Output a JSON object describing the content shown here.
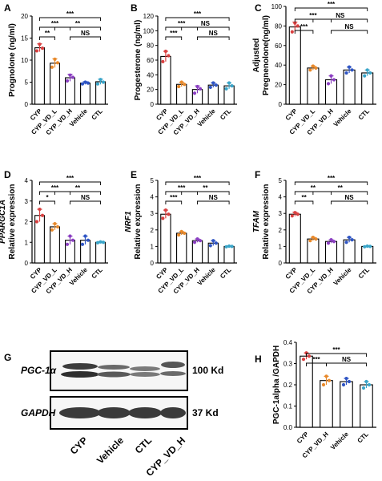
{
  "colors": {
    "CYP": "#d94040",
    "CYP_VD_L": "#e8892b",
    "CYP_VD_H": "#8b3fc2",
    "Vehicle": "#2f55c4",
    "CTL": "#3aa5c9"
  },
  "chart_data": [
    {
      "panel": "A",
      "type": "bar",
      "categories": [
        "CYP",
        "CYP_VD_L",
        "CYP_VD_H",
        "Vehicle",
        "CTL"
      ],
      "values": [
        12.8,
        9.3,
        6.0,
        4.8,
        5.1
      ],
      "errors": [
        0.9,
        1.0,
        0.8,
        0.3,
        0.6
      ],
      "points": [
        [
          12.1,
          13.6,
          12.7
        ],
        [
          8.4,
          10.2,
          9.4
        ],
        [
          5.3,
          6.6,
          6.1
        ],
        [
          4.6,
          5.0,
          4.8
        ],
        [
          4.6,
          5.6,
          5.0
        ]
      ],
      "ylabel": "Prognolone (ng/ml)",
      "ylim": [
        0,
        20
      ],
      "yticks": [
        0,
        5,
        10,
        15,
        20
      ],
      "sig": [
        {
          "from": 0,
          "to": 1,
          "level": 0,
          "label": "**"
        },
        {
          "from": 0,
          "to": 2,
          "level": 1,
          "label": "***"
        },
        {
          "from": 0,
          "to": 4,
          "level": 2,
          "label": "***"
        },
        {
          "from": 1,
          "to": 4,
          "level": 1,
          "label": "**"
        },
        {
          "from": 2,
          "to": 4,
          "level": 0,
          "label": "NS"
        }
      ]
    },
    {
      "panel": "B",
      "type": "bar",
      "categories": [
        "CYP",
        "CYP_VD_L",
        "CYP_VD_H",
        "Vehicle",
        "CTL"
      ],
      "values": [
        65,
        27,
        20,
        26,
        25
      ],
      "errors": [
        7,
        3,
        5,
        3,
        4
      ],
      "points": [
        [
          58,
          72,
          66
        ],
        [
          24,
          30,
          27
        ],
        [
          15,
          24,
          21
        ],
        [
          23,
          29,
          26
        ],
        [
          21,
          29,
          25
        ]
      ],
      "ylabel": "Progesterone (ng/ml)",
      "ylim": [
        0,
        120
      ],
      "yticks": [
        0,
        20,
        40,
        60,
        80,
        100,
        120
      ],
      "sig": [
        {
          "from": 0,
          "to": 1,
          "level": 0,
          "label": "***"
        },
        {
          "from": 0,
          "to": 2,
          "level": 1,
          "label": "***"
        },
        {
          "from": 0,
          "to": 4,
          "level": 2,
          "label": "***"
        },
        {
          "from": 1,
          "to": 4,
          "level": 1,
          "label": "NS"
        },
        {
          "from": 2,
          "to": 4,
          "level": 0,
          "label": "NS"
        }
      ]
    },
    {
      "panel": "C",
      "type": "bar",
      "categories": [
        "CYP",
        "CYP_VD_L",
        "CYP_VD_H",
        "Vehicle",
        "CTL"
      ],
      "values": [
        79,
        37,
        25,
        35,
        32
      ],
      "errors": [
        5,
        2,
        4,
        3,
        3
      ],
      "points": [
        [
          74,
          83,
          80
        ],
        [
          35,
          39,
          37
        ],
        [
          21,
          29,
          25
        ],
        [
          32,
          38,
          35
        ],
        [
          29,
          35,
          32
        ]
      ],
      "ylabel": "Adjusted Pregnenolone(ng/ml)",
      "ylim": [
        0,
        100
      ],
      "yticks": [
        0,
        20,
        40,
        60,
        80,
        100
      ],
      "sig": [
        {
          "from": 0,
          "to": 1,
          "level": 0,
          "label": "***"
        },
        {
          "from": 0,
          "to": 2,
          "level": 1,
          "label": "***"
        },
        {
          "from": 0,
          "to": 4,
          "level": 2,
          "label": "***"
        },
        {
          "from": 1,
          "to": 4,
          "level": 1,
          "label": "NS"
        },
        {
          "from": 2,
          "to": 4,
          "level": 0,
          "label": "NS"
        }
      ]
    },
    {
      "panel": "D",
      "type": "bar",
      "categories": [
        "CYP",
        "CYP_VD_L",
        "CYP_VD_H",
        "Vehicle",
        "CTL"
      ],
      "values": [
        2.3,
        1.75,
        1.1,
        1.1,
        1.0
      ],
      "errors": [
        0.3,
        0.15,
        0.2,
        0.2,
        0.03
      ],
      "points": [
        [
          2.0,
          2.6,
          2.3
        ],
        [
          1.6,
          1.9,
          1.75
        ],
        [
          0.9,
          1.3,
          1.1
        ],
        [
          0.9,
          1.3,
          1.1
        ],
        [
          0.98,
          1.02,
          1.0
        ]
      ],
      "ylabel": "PPARGC1A Relative expression",
      "ylim": [
        0,
        4
      ],
      "yticks": [
        0,
        1,
        2,
        3,
        4
      ],
      "sig": [
        {
          "from": 0,
          "to": 1,
          "level": 0,
          "label": "*"
        },
        {
          "from": 0,
          "to": 2,
          "level": 1,
          "label": "***"
        },
        {
          "from": 0,
          "to": 4,
          "level": 2,
          "label": "***"
        },
        {
          "from": 1,
          "to": 4,
          "level": 1,
          "label": "**"
        },
        {
          "from": 2,
          "to": 4,
          "level": 0,
          "label": "NS"
        }
      ]
    },
    {
      "panel": "E",
      "type": "bar",
      "categories": [
        "CYP",
        "CYP_VD_L",
        "CYP_VD_H",
        "Vehicle",
        "CTL"
      ],
      "values": [
        2.95,
        1.8,
        1.35,
        1.2,
        1.0
      ],
      "errors": [
        0.25,
        0.1,
        0.1,
        0.15,
        0.03
      ],
      "points": [
        [
          2.7,
          3.2,
          2.95
        ],
        [
          1.7,
          1.9,
          1.8
        ],
        [
          1.25,
          1.45,
          1.35
        ],
        [
          1.05,
          1.35,
          1.2
        ],
        [
          0.98,
          1.02,
          1.0
        ]
      ],
      "ylabel": "NRF1 Relative expression",
      "ylim": [
        0,
        5
      ],
      "yticks": [
        0,
        1,
        2,
        3,
        4,
        5
      ],
      "sig": [
        {
          "from": 0,
          "to": 1,
          "level": 0,
          "label": "***"
        },
        {
          "from": 0,
          "to": 2,
          "level": 1,
          "label": "***"
        },
        {
          "from": 0,
          "to": 4,
          "level": 2,
          "label": "***"
        },
        {
          "from": 1,
          "to": 4,
          "level": 1,
          "label": "**"
        },
        {
          "from": 2,
          "to": 4,
          "level": 0,
          "label": "NS"
        }
      ]
    },
    {
      "panel": "F",
      "type": "bar",
      "categories": [
        "CYP",
        "CYP_VD_L",
        "CYP_VD_H",
        "Vehicle",
        "CTL"
      ],
      "values": [
        2.95,
        1.45,
        1.3,
        1.4,
        1.0
      ],
      "errors": [
        0.12,
        0.1,
        0.1,
        0.15,
        0.03
      ],
      "points": [
        [
          2.85,
          3.05,
          2.95
        ],
        [
          1.35,
          1.55,
          1.45
        ],
        [
          1.2,
          1.4,
          1.3
        ],
        [
          1.25,
          1.55,
          1.4
        ],
        [
          0.98,
          1.02,
          1.0
        ]
      ],
      "ylabel": "TFAM Relative expression",
      "ylim": [
        0,
        5
      ],
      "yticks": [
        0,
        1,
        2,
        3,
        4,
        5
      ],
      "sig": [
        {
          "from": 0,
          "to": 1,
          "level": 0,
          "label": "**"
        },
        {
          "from": 0,
          "to": 2,
          "level": 1,
          "label": "**"
        },
        {
          "from": 0,
          "to": 4,
          "level": 2,
          "label": "***"
        },
        {
          "from": 1,
          "to": 4,
          "level": 1,
          "label": "**"
        },
        {
          "from": 2,
          "to": 4,
          "level": 0,
          "label": "NS"
        }
      ]
    },
    {
      "panel": "H",
      "type": "bar",
      "categories": [
        "CYP",
        "CYP_VD_H",
        "Vehicle",
        "CTL"
      ],
      "colorKeys": [
        "CYP",
        "CYP_VD_L",
        "Vehicle",
        "CTL"
      ],
      "values": [
        0.335,
        0.22,
        0.215,
        0.2
      ],
      "errors": [
        0.015,
        0.02,
        0.015,
        0.015
      ],
      "points": [
        [
          0.32,
          0.35,
          0.335
        ],
        [
          0.2,
          0.24,
          0.22
        ],
        [
          0.2,
          0.23,
          0.215
        ],
        [
          0.185,
          0.215,
          0.2
        ]
      ],
      "ylabel": "PGC-1alpha /GAPDH",
      "ylim": [
        0,
        0.4
      ],
      "yticks": [
        0.0,
        0.1,
        0.2,
        0.3,
        0.4
      ],
      "sig": [
        {
          "from": 0,
          "to": 1,
          "level": 0,
          "label": "***"
        },
        {
          "from": 0,
          "to": 3,
          "level": 1,
          "label": "***"
        },
        {
          "from": 1,
          "to": 3,
          "level": 0,
          "label": "NS"
        }
      ]
    }
  ],
  "blot": {
    "panel": "G",
    "bands": [
      {
        "label": "PGC-1α",
        "size": "100 Kd"
      },
      {
        "label": "GAPDH",
        "size": "37 Kd"
      }
    ],
    "lanes": [
      "CYP",
      "Vehicle",
      "CTL",
      "CYP_VD_H"
    ]
  }
}
